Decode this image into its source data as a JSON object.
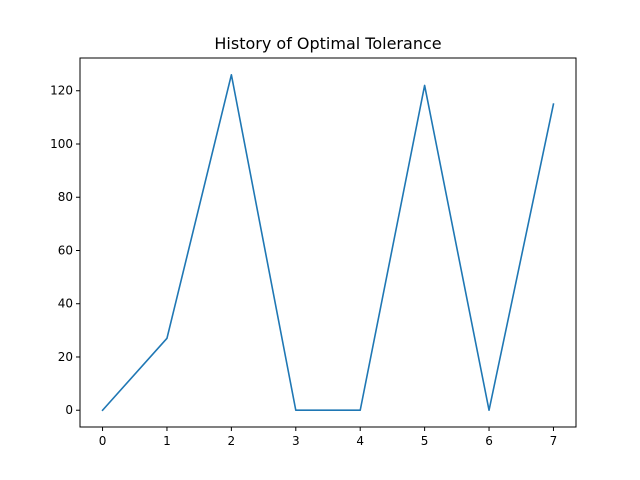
{
  "chart_data": {
    "type": "line",
    "title": "History of Optimal Tolerance",
    "xlabel": "",
    "ylabel": "",
    "x": [
      0,
      1,
      2,
      3,
      4,
      5,
      6,
      7
    ],
    "series": [
      {
        "values": [
          0,
          27,
          126,
          0,
          0,
          122,
          0,
          115
        ]
      }
    ],
    "xlim": [
      -0.35,
      7.35
    ],
    "ylim": [
      -6.3,
      132.3
    ],
    "xticks": [
      0,
      1,
      2,
      3,
      4,
      5,
      6,
      7
    ],
    "yticks": [
      0,
      20,
      40,
      60,
      80,
      100,
      120
    ],
    "grid": false,
    "line_color": "#1f77b4"
  }
}
